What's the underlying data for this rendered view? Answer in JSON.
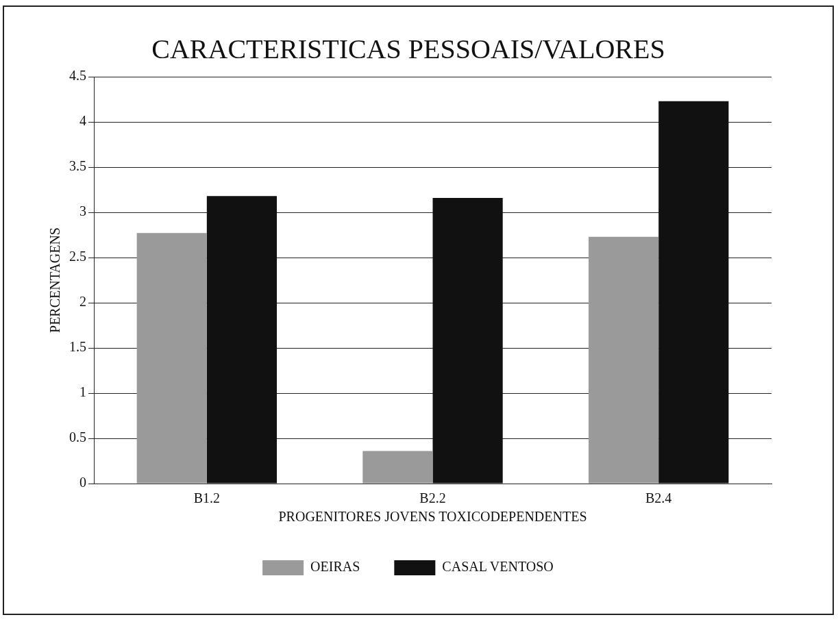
{
  "chart_data": {
    "type": "bar",
    "title": "CARACTERISTICAS PESSOAIS/VALORES",
    "xlabel": "PROGENITORES JOVENS TOXICODEPENDENTES",
    "ylabel": "PERCENTAGENS",
    "categories": [
      "B1.2",
      "B2.2",
      "B2.4"
    ],
    "series": [
      {
        "name": "OEIRAS",
        "color": "#9a9a9a",
        "values": [
          2.77,
          0.36,
          2.73
        ]
      },
      {
        "name": "CASAL VENTOSO",
        "color": "#111111",
        "values": [
          3.18,
          3.16,
          4.23
        ]
      }
    ],
    "ylim": [
      0,
      4.5
    ],
    "yticks": [
      0,
      0.5,
      1,
      1.5,
      2,
      2.5,
      3,
      3.5,
      4,
      4.5
    ],
    "grid": "y",
    "legend": "bottom"
  }
}
